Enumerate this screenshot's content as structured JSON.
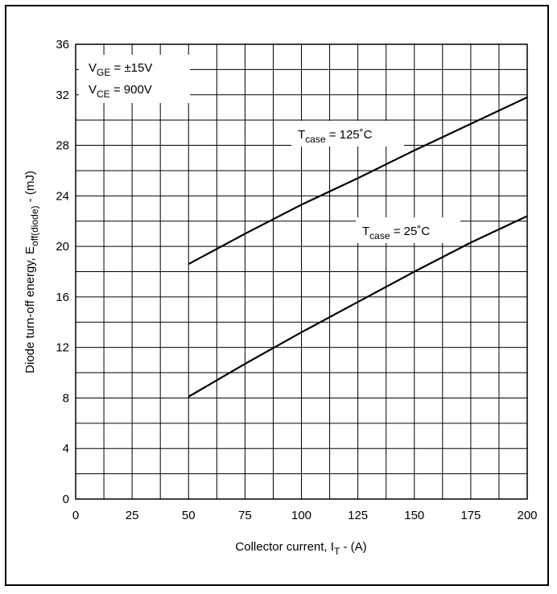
{
  "chart_data": {
    "type": "line",
    "xlabel": {
      "main": "Collector current, I",
      "sub": "T",
      "tail": " - (A)"
    },
    "ylabel": {
      "main": "Diode turn-off energy, E",
      "sub": "off(diode)",
      "tail": " - (mJ)"
    },
    "xlim": [
      0,
      200
    ],
    "ylim": [
      0,
      36
    ],
    "x_ticks": [
      "0",
      "25",
      "50",
      "75",
      "100",
      "125",
      "150",
      "175",
      "200"
    ],
    "y_ticks": [
      "0",
      "4",
      "8",
      "12",
      "16",
      "20",
      "24",
      "28",
      "32",
      "36"
    ],
    "grid": true,
    "series": [
      {
        "name": "T_case = 125°C",
        "x": [
          50,
          75,
          100,
          125,
          150,
          175,
          200
        ],
        "y": [
          18.6,
          21.0,
          23.3,
          25.4,
          27.6,
          29.7,
          31.8
        ]
      },
      {
        "name": "T_case = 25°C",
        "x": [
          50,
          75,
          100,
          125,
          150,
          175,
          200
        ],
        "y": [
          8.1,
          10.7,
          13.2,
          15.6,
          18.0,
          20.3,
          22.4
        ]
      }
    ],
    "annotations": [
      {
        "main": "V",
        "sub": "GE",
        "tail": " = ±15V"
      },
      {
        "main": "V",
        "sub": "CE",
        "tail": " = 900V"
      },
      {
        "main": "T",
        "sub": "case",
        "tail": " = 125˚C"
      },
      {
        "main": "T",
        "sub": "case",
        "tail": " = 25˚C"
      }
    ]
  }
}
